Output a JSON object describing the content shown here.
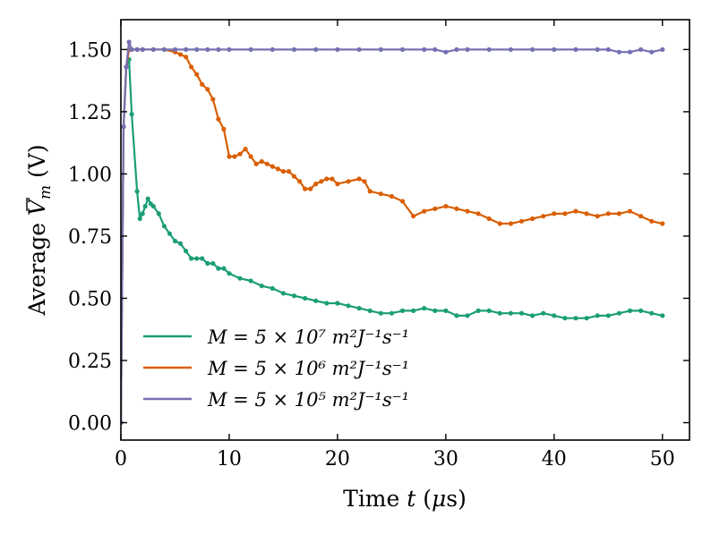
{
  "chart_data": {
    "type": "line",
    "xlabel": "Time t (μs)",
    "ylabel": "Average V̄m (V)",
    "xlim": [
      0,
      52.5
    ],
    "ylim": [
      -0.07,
      1.62
    ],
    "xticks": [
      0,
      10,
      20,
      30,
      40,
      50
    ],
    "xtick_labels": [
      "0",
      "10",
      "20",
      "30",
      "40",
      "50"
    ],
    "yticks": [
      0.0,
      0.25,
      0.5,
      0.75,
      1.0,
      1.25,
      1.5
    ],
    "ytick_labels": [
      "0.00",
      "0.25",
      "0.50",
      "0.75",
      "1.00",
      "1.25",
      "1.50"
    ],
    "legend_position": "lower-left",
    "series": [
      {
        "name": "M = 5 × 10⁷ m²J⁻¹s⁻¹",
        "color": "#1b9e77",
        "x": [
          0,
          0.25,
          0.5,
          0.75,
          1.0,
          1.5,
          1.75,
          2.0,
          2.25,
          2.5,
          2.75,
          3.0,
          3.5,
          4.0,
          4.5,
          5.0,
          5.5,
          6.0,
          6.5,
          7.0,
          7.5,
          8.0,
          8.5,
          9.0,
          9.5,
          10.0,
          11.0,
          12.0,
          13.0,
          14.0,
          15.0,
          16.0,
          17.0,
          18.0,
          19.0,
          20.0,
          21.0,
          22.0,
          23.0,
          24.0,
          25.0,
          26.0,
          27.0,
          28.0,
          29.0,
          30.0,
          31.0,
          32.0,
          33.0,
          34.0,
          35.0,
          36.0,
          37.0,
          38.0,
          39.0,
          40.0,
          41.0,
          42.0,
          43.0,
          44.0,
          45.0,
          46.0,
          47.0,
          48.0,
          49.0,
          50.0
        ],
        "y": [
          0.0,
          1.19,
          1.43,
          1.46,
          1.24,
          0.93,
          0.82,
          0.84,
          0.87,
          0.9,
          0.88,
          0.87,
          0.84,
          0.79,
          0.76,
          0.73,
          0.72,
          0.69,
          0.66,
          0.66,
          0.66,
          0.64,
          0.64,
          0.62,
          0.62,
          0.6,
          0.58,
          0.57,
          0.55,
          0.54,
          0.52,
          0.51,
          0.5,
          0.49,
          0.48,
          0.48,
          0.47,
          0.46,
          0.45,
          0.44,
          0.44,
          0.45,
          0.45,
          0.46,
          0.45,
          0.45,
          0.43,
          0.43,
          0.45,
          0.45,
          0.44,
          0.44,
          0.44,
          0.43,
          0.44,
          0.43,
          0.42,
          0.42,
          0.42,
          0.43,
          0.43,
          0.44,
          0.45,
          0.45,
          0.44,
          0.43
        ]
      },
      {
        "name": "M = 5 × 10⁶ m²J⁻¹s⁻¹",
        "color": "#d95f02",
        "x": [
          0,
          0.25,
          0.5,
          0.75,
          1.0,
          1.5,
          2.0,
          3.0,
          4.0,
          5.0,
          5.5,
          6.0,
          6.5,
          7.0,
          7.5,
          8.0,
          8.5,
          9.0,
          9.5,
          10.0,
          10.5,
          11.0,
          11.5,
          12.0,
          12.5,
          13.0,
          13.5,
          14.0,
          14.5,
          15.0,
          15.5,
          16.0,
          16.5,
          17.0,
          17.5,
          18.0,
          18.5,
          19.0,
          19.5,
          20.0,
          21.0,
          22.0,
          22.5,
          23.0,
          24.0,
          25.0,
          26.0,
          27.0,
          28.0,
          29.0,
          30.0,
          31.0,
          32.0,
          33.0,
          34.0,
          35.0,
          36.0,
          37.0,
          38.0,
          39.0,
          40.0,
          41.0,
          42.0,
          43.0,
          44.0,
          45.0,
          46.0,
          47.0,
          48.0,
          49.0,
          50.0
        ],
        "y": [
          0.0,
          1.19,
          1.43,
          1.5,
          1.5,
          1.5,
          1.5,
          1.5,
          1.5,
          1.49,
          1.48,
          1.47,
          1.43,
          1.4,
          1.36,
          1.34,
          1.3,
          1.22,
          1.18,
          1.07,
          1.07,
          1.08,
          1.1,
          1.07,
          1.04,
          1.05,
          1.04,
          1.03,
          1.02,
          1.01,
          1.01,
          0.99,
          0.97,
          0.94,
          0.94,
          0.96,
          0.97,
          0.98,
          0.98,
          0.96,
          0.97,
          0.98,
          0.97,
          0.93,
          0.92,
          0.91,
          0.89,
          0.83,
          0.85,
          0.86,
          0.87,
          0.86,
          0.85,
          0.84,
          0.82,
          0.8,
          0.8,
          0.81,
          0.82,
          0.83,
          0.84,
          0.84,
          0.85,
          0.84,
          0.83,
          0.84,
          0.84,
          0.85,
          0.83,
          0.81,
          0.8
        ]
      },
      {
        "name": "M = 5 × 10⁵ m²J⁻¹s⁻¹",
        "color": "#7570b3",
        "x": [
          0,
          0.25,
          0.5,
          0.75,
          1.0,
          1.5,
          2.0,
          3.0,
          4.0,
          5.0,
          6.0,
          7.0,
          8.0,
          9.0,
          10.0,
          12.0,
          14.0,
          16.0,
          18.0,
          20.0,
          22.0,
          24.0,
          26.0,
          28.0,
          29.0,
          30.0,
          31.0,
          32.0,
          34.0,
          36.0,
          38.0,
          40.0,
          42.0,
          44.0,
          45.0,
          46.0,
          47.0,
          48.0,
          49.0,
          50.0
        ],
        "y": [
          0.0,
          1.19,
          1.43,
          1.53,
          1.5,
          1.5,
          1.5,
          1.5,
          1.5,
          1.5,
          1.5,
          1.5,
          1.5,
          1.5,
          1.5,
          1.5,
          1.5,
          1.5,
          1.5,
          1.5,
          1.5,
          1.5,
          1.5,
          1.5,
          1.5,
          1.49,
          1.5,
          1.5,
          1.5,
          1.5,
          1.5,
          1.5,
          1.5,
          1.5,
          1.5,
          1.49,
          1.49,
          1.5,
          1.49,
          1.5
        ]
      }
    ]
  }
}
